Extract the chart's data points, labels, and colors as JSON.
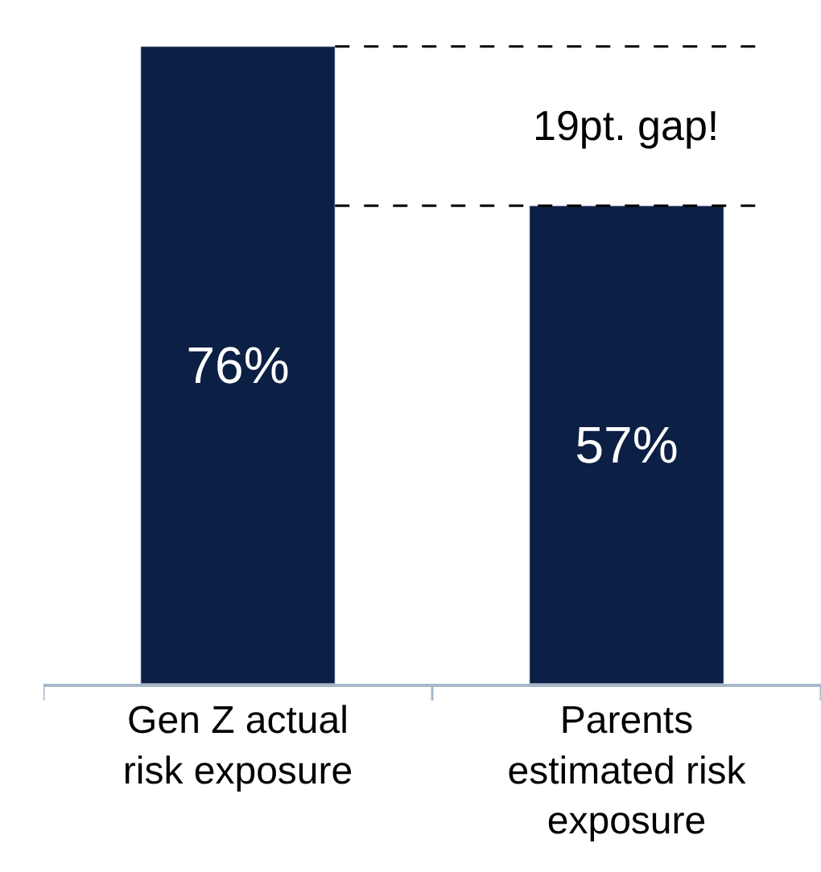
{
  "chart_data": {
    "type": "bar",
    "categories": [
      "Gen Z actual risk exposure",
      "Parents estimated risk exposure"
    ],
    "values": [
      76,
      57
    ],
    "color": "#0c1f45",
    "value_labels": [
      "76%",
      "57%"
    ],
    "ref_lines": [
      {
        "axis": "y",
        "value": 76,
        "line_style": "dashed",
        "color": "#000000"
      },
      {
        "axis": "y",
        "value": 57,
        "line_style": "dashed",
        "color": "#000000"
      }
    ],
    "annotations": [
      "19pt. gap!"
    ]
  }
}
